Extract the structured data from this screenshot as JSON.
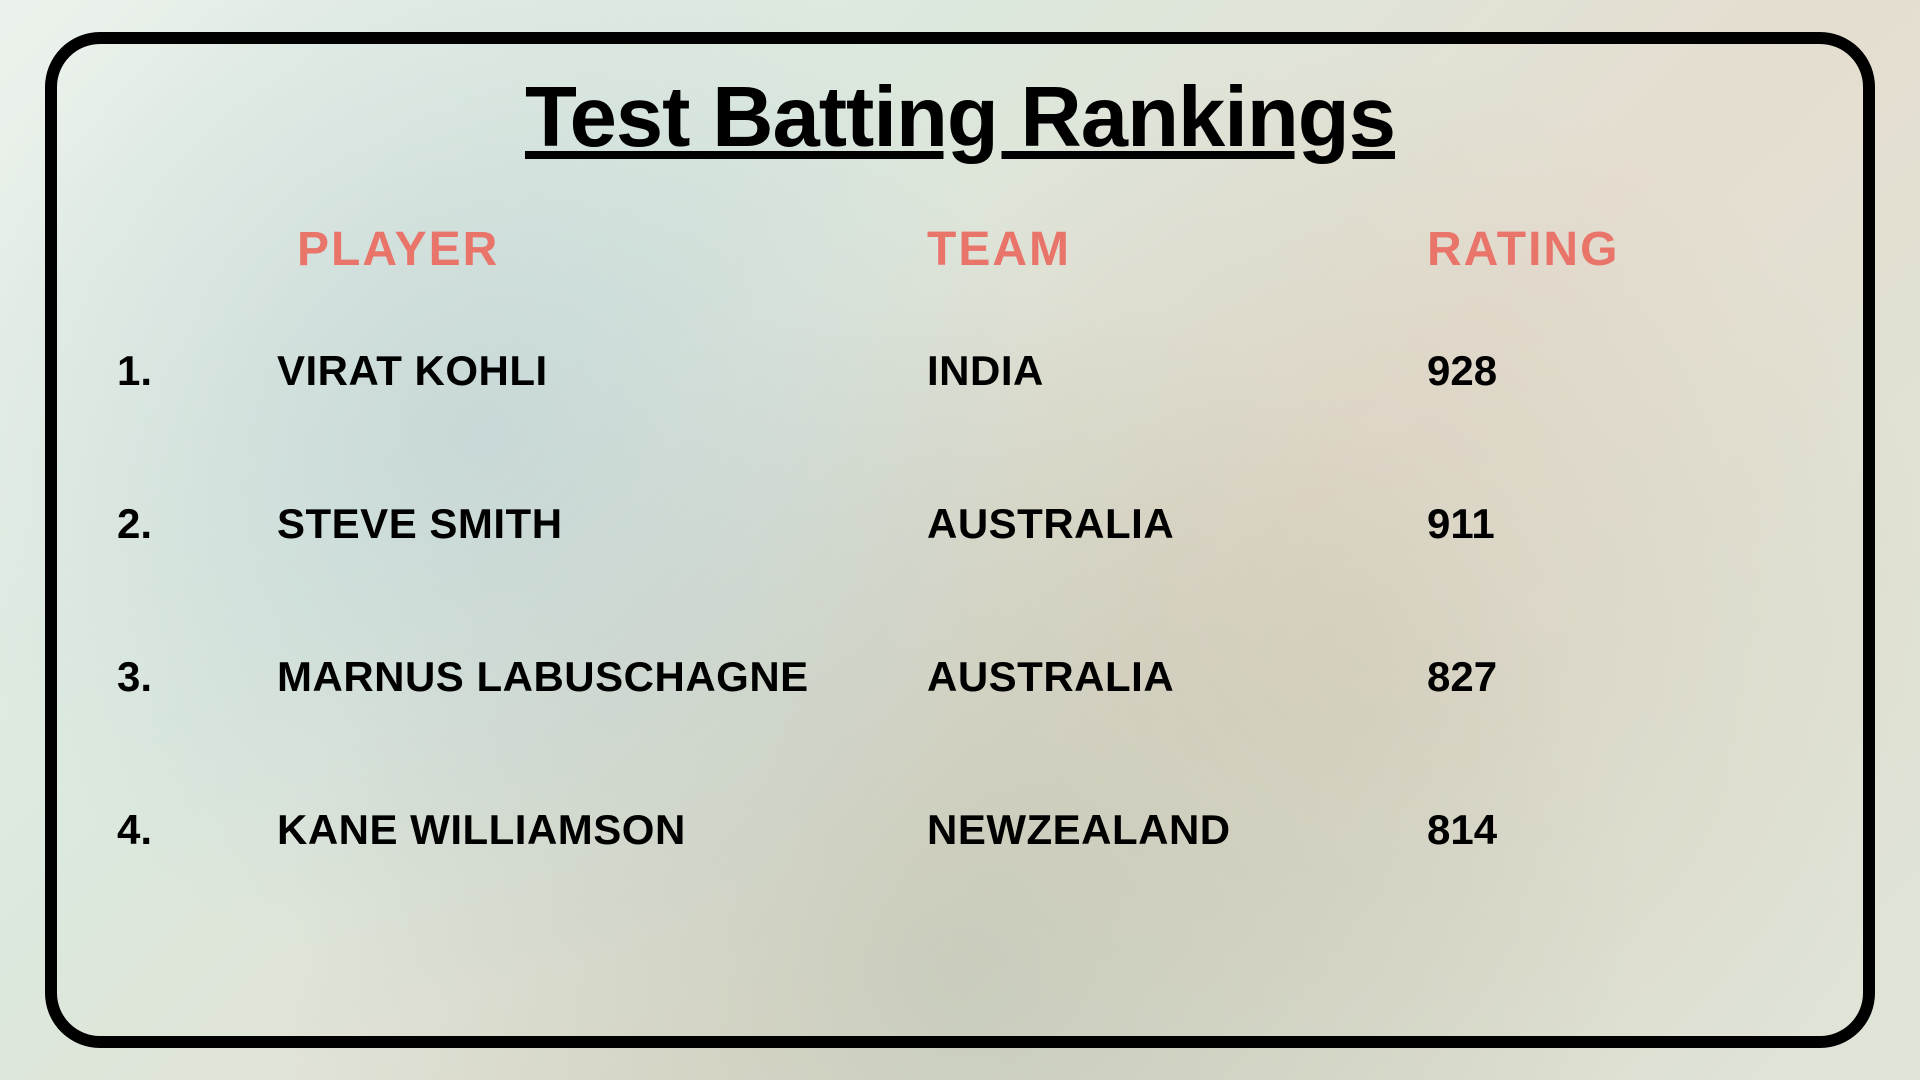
{
  "title": "Test Batting Rankings",
  "headers": {
    "player": "PLAYER",
    "team": "TEAM",
    "rating": "RATING"
  },
  "styling": {
    "title_color": "#000000",
    "title_fontsize": 85,
    "header_color": "#e8746a",
    "header_fontsize": 48,
    "data_color": "#000000",
    "data_fontsize": 42,
    "border_color": "#000000",
    "border_width": 12,
    "border_radius": 55,
    "background_base": "#e8f0e8"
  },
  "rows": [
    {
      "rank": "1.",
      "player": "VIRAT KOHLI",
      "team": "INDIA",
      "rating": "928"
    },
    {
      "rank": "2.",
      "player": "STEVE SMITH",
      "team": "AUSTRALIA",
      "rating": "911"
    },
    {
      "rank": "3.",
      "player": "MARNUS LABUSCHAGNE",
      "team": "AUSTRALIA",
      "rating": "827"
    },
    {
      "rank": "4.",
      "player": "KANE WILLIAMSON",
      "team": "NEWZEALAND",
      "rating": "814"
    }
  ]
}
